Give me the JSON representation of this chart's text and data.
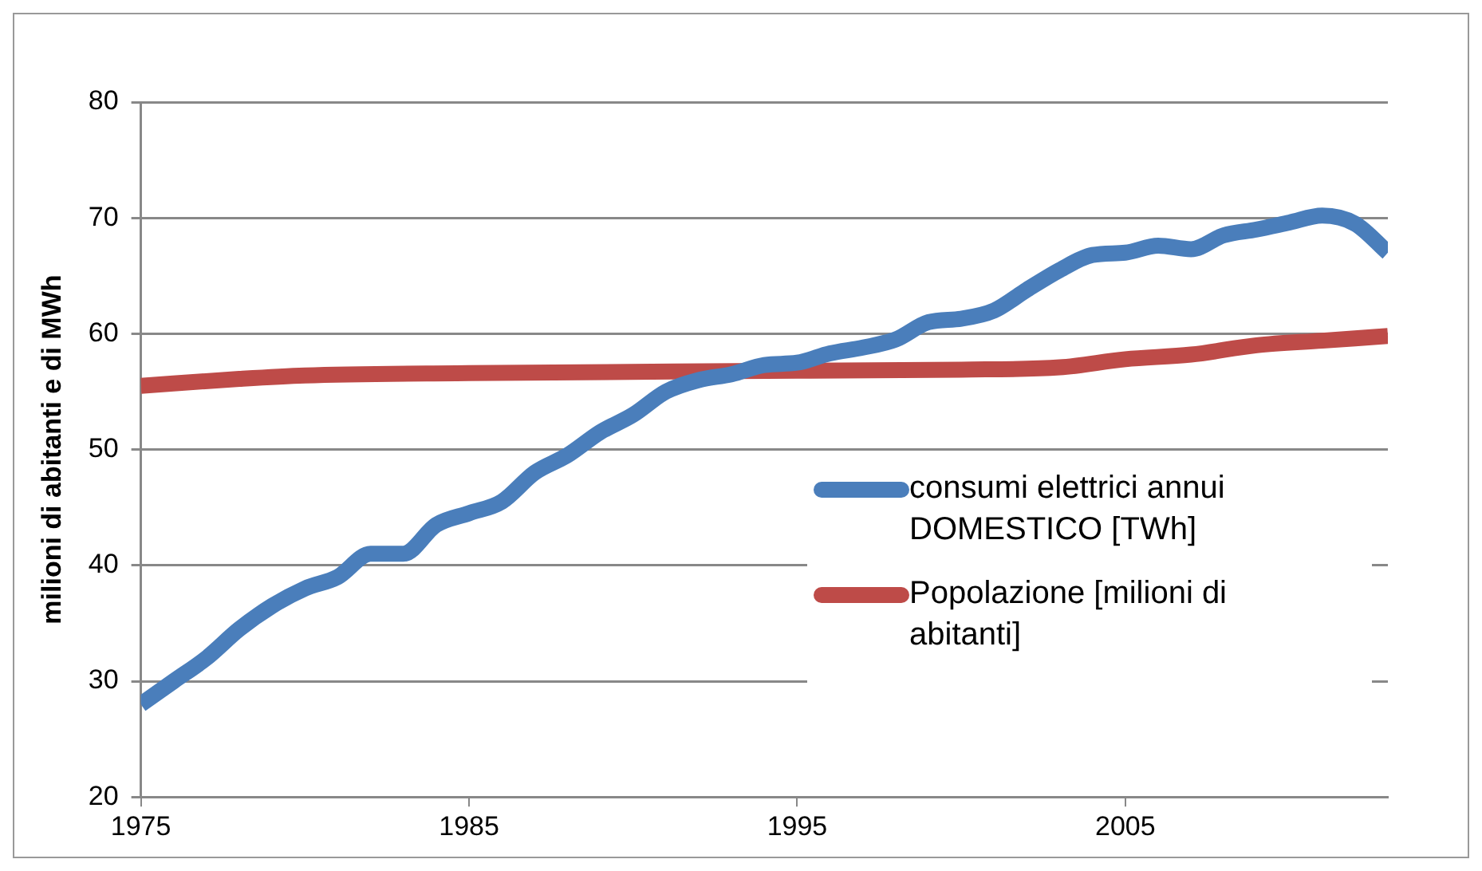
{
  "chart_data": {
    "type": "line",
    "ylabel": "milioni di abitanti e di MWh",
    "xlim": [
      1975,
      2013
    ],
    "xticks": [
      1975,
      1985,
      1995,
      2005
    ],
    "ylim": [
      20,
      80
    ],
    "yticks": [
      20,
      30,
      40,
      50,
      60,
      70,
      80
    ],
    "grid": "y",
    "legend": "right",
    "marker": "none",
    "line_style": "solid",
    "series": [
      {
        "name": "consumi elettrici annui DOMESTICO [TWh]",
        "color": "#4a7ebb",
        "x": [
          1975,
          1976,
          1977,
          1978,
          1979,
          1980,
          1981,
          1982,
          1983,
          1984,
          1985,
          1986,
          1987,
          1988,
          1989,
          1990,
          1991,
          1992,
          1993,
          1994,
          1995,
          1996,
          1997,
          1998,
          1999,
          2000,
          2001,
          2002,
          2003,
          2004,
          2005,
          2006,
          2007,
          2008,
          2009,
          2010,
          2011,
          2012,
          2013
        ],
        "values": [
          28,
          30,
          32,
          34.5,
          36.5,
          38,
          39,
          41,
          41,
          43.5,
          44.5,
          45.5,
          48,
          49.5,
          51.5,
          53,
          55,
          56,
          56.5,
          57.3,
          57.5,
          58.3,
          58.8,
          59.5,
          61,
          61.3,
          62,
          63.8,
          65.5,
          66.8,
          67,
          67.6,
          67.3,
          68.5,
          69,
          69.6,
          70.2,
          69.5,
          67
        ]
      },
      {
        "name": "Popolazione [milioni di abitanti]",
        "color": "#be4b48",
        "x": [
          1975,
          1978,
          1980,
          1985,
          1995,
          2000,
          2003,
          2005,
          2007,
          2009,
          2011,
          2013
        ],
        "values": [
          55.5,
          56.1,
          56.4,
          56.6,
          56.8,
          56.9,
          57.1,
          57.8,
          58.2,
          59,
          59.4,
          59.8
        ]
      }
    ]
  }
}
